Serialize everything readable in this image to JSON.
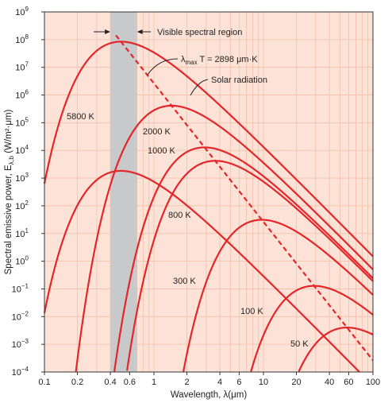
{
  "chart_data": {
    "type": "line",
    "xlabel": "Wavelength, λ(μm)",
    "ylabel": "Spectral emissive power, E",
    "ylabel_subscript": "λ,b",
    "ylabel_unit": " (W/m²·μm)",
    "x_scale": "log",
    "y_scale": "log",
    "xlim": [
      0.1,
      100
    ],
    "ylim": [
      0.0001,
      1000000000
    ],
    "grid": true,
    "colors": {
      "background": "#fde3d7",
      "grid": "#f4bfa8",
      "curve": "#e4262b",
      "band": "#c8c9cb"
    },
    "x_ticks": [
      {
        "value": 0.1,
        "label": "0.1"
      },
      {
        "value": 0.2,
        "label": "0.2"
      },
      {
        "value": 0.4,
        "label": "0.4"
      },
      {
        "value": 0.6,
        "label": "0.6"
      },
      {
        "value": 1,
        "label": "1"
      },
      {
        "value": 2,
        "label": "2"
      },
      {
        "value": 4,
        "label": "4"
      },
      {
        "value": 6,
        "label": "6"
      },
      {
        "value": 10,
        "label": "10"
      },
      {
        "value": 20,
        "label": "20"
      },
      {
        "value": 40,
        "label": "40"
      },
      {
        "value": 60,
        "label": "60"
      },
      {
        "value": 100,
        "label": "100"
      }
    ],
    "y_ticks": [
      {
        "exp": -4,
        "base": "10",
        "sup": "−4"
      },
      {
        "exp": -3,
        "base": "10",
        "sup": "−3"
      },
      {
        "exp": -2,
        "base": "10",
        "sup": "−2"
      },
      {
        "exp": -1,
        "base": "10",
        "sup": "−1"
      },
      {
        "exp": 0,
        "base": "10",
        "sup": "0"
      },
      {
        "exp": 1,
        "base": "10",
        "sup": "1"
      },
      {
        "exp": 2,
        "base": "10",
        "sup": "2"
      },
      {
        "exp": 3,
        "base": "10",
        "sup": "3"
      },
      {
        "exp": 4,
        "base": "10",
        "sup": "4"
      },
      {
        "exp": 5,
        "base": "10",
        "sup": "5"
      },
      {
        "exp": 6,
        "base": "10",
        "sup": "6"
      },
      {
        "exp": 7,
        "base": "10",
        "sup": "7"
      },
      {
        "exp": 8,
        "base": "10",
        "sup": "8"
      },
      {
        "exp": 9,
        "base": "10",
        "sup": "9"
      }
    ],
    "series": [
      {
        "name": "5800 K",
        "temperature": 5800
      },
      {
        "name": "2000 K",
        "temperature": 2000
      },
      {
        "name": "1000 K",
        "temperature": 1000
      },
      {
        "name": "800 K",
        "temperature": 800
      },
      {
        "name": "300 K",
        "temperature": 300
      },
      {
        "name": "100 K",
        "temperature": 100
      },
      {
        "name": "50 K",
        "temperature": 50
      }
    ],
    "solar_radiation": {
      "label": "Solar radiation",
      "temperature": 5800
    },
    "wien_line": {
      "label_main": "λ",
      "label_sub": "max",
      "label_rest": " T = 2898 μm·K",
      "constant": 2898
    },
    "visible_region": {
      "label": "Visible spectral region",
      "range": [
        0.4,
        0.7
      ]
    }
  }
}
